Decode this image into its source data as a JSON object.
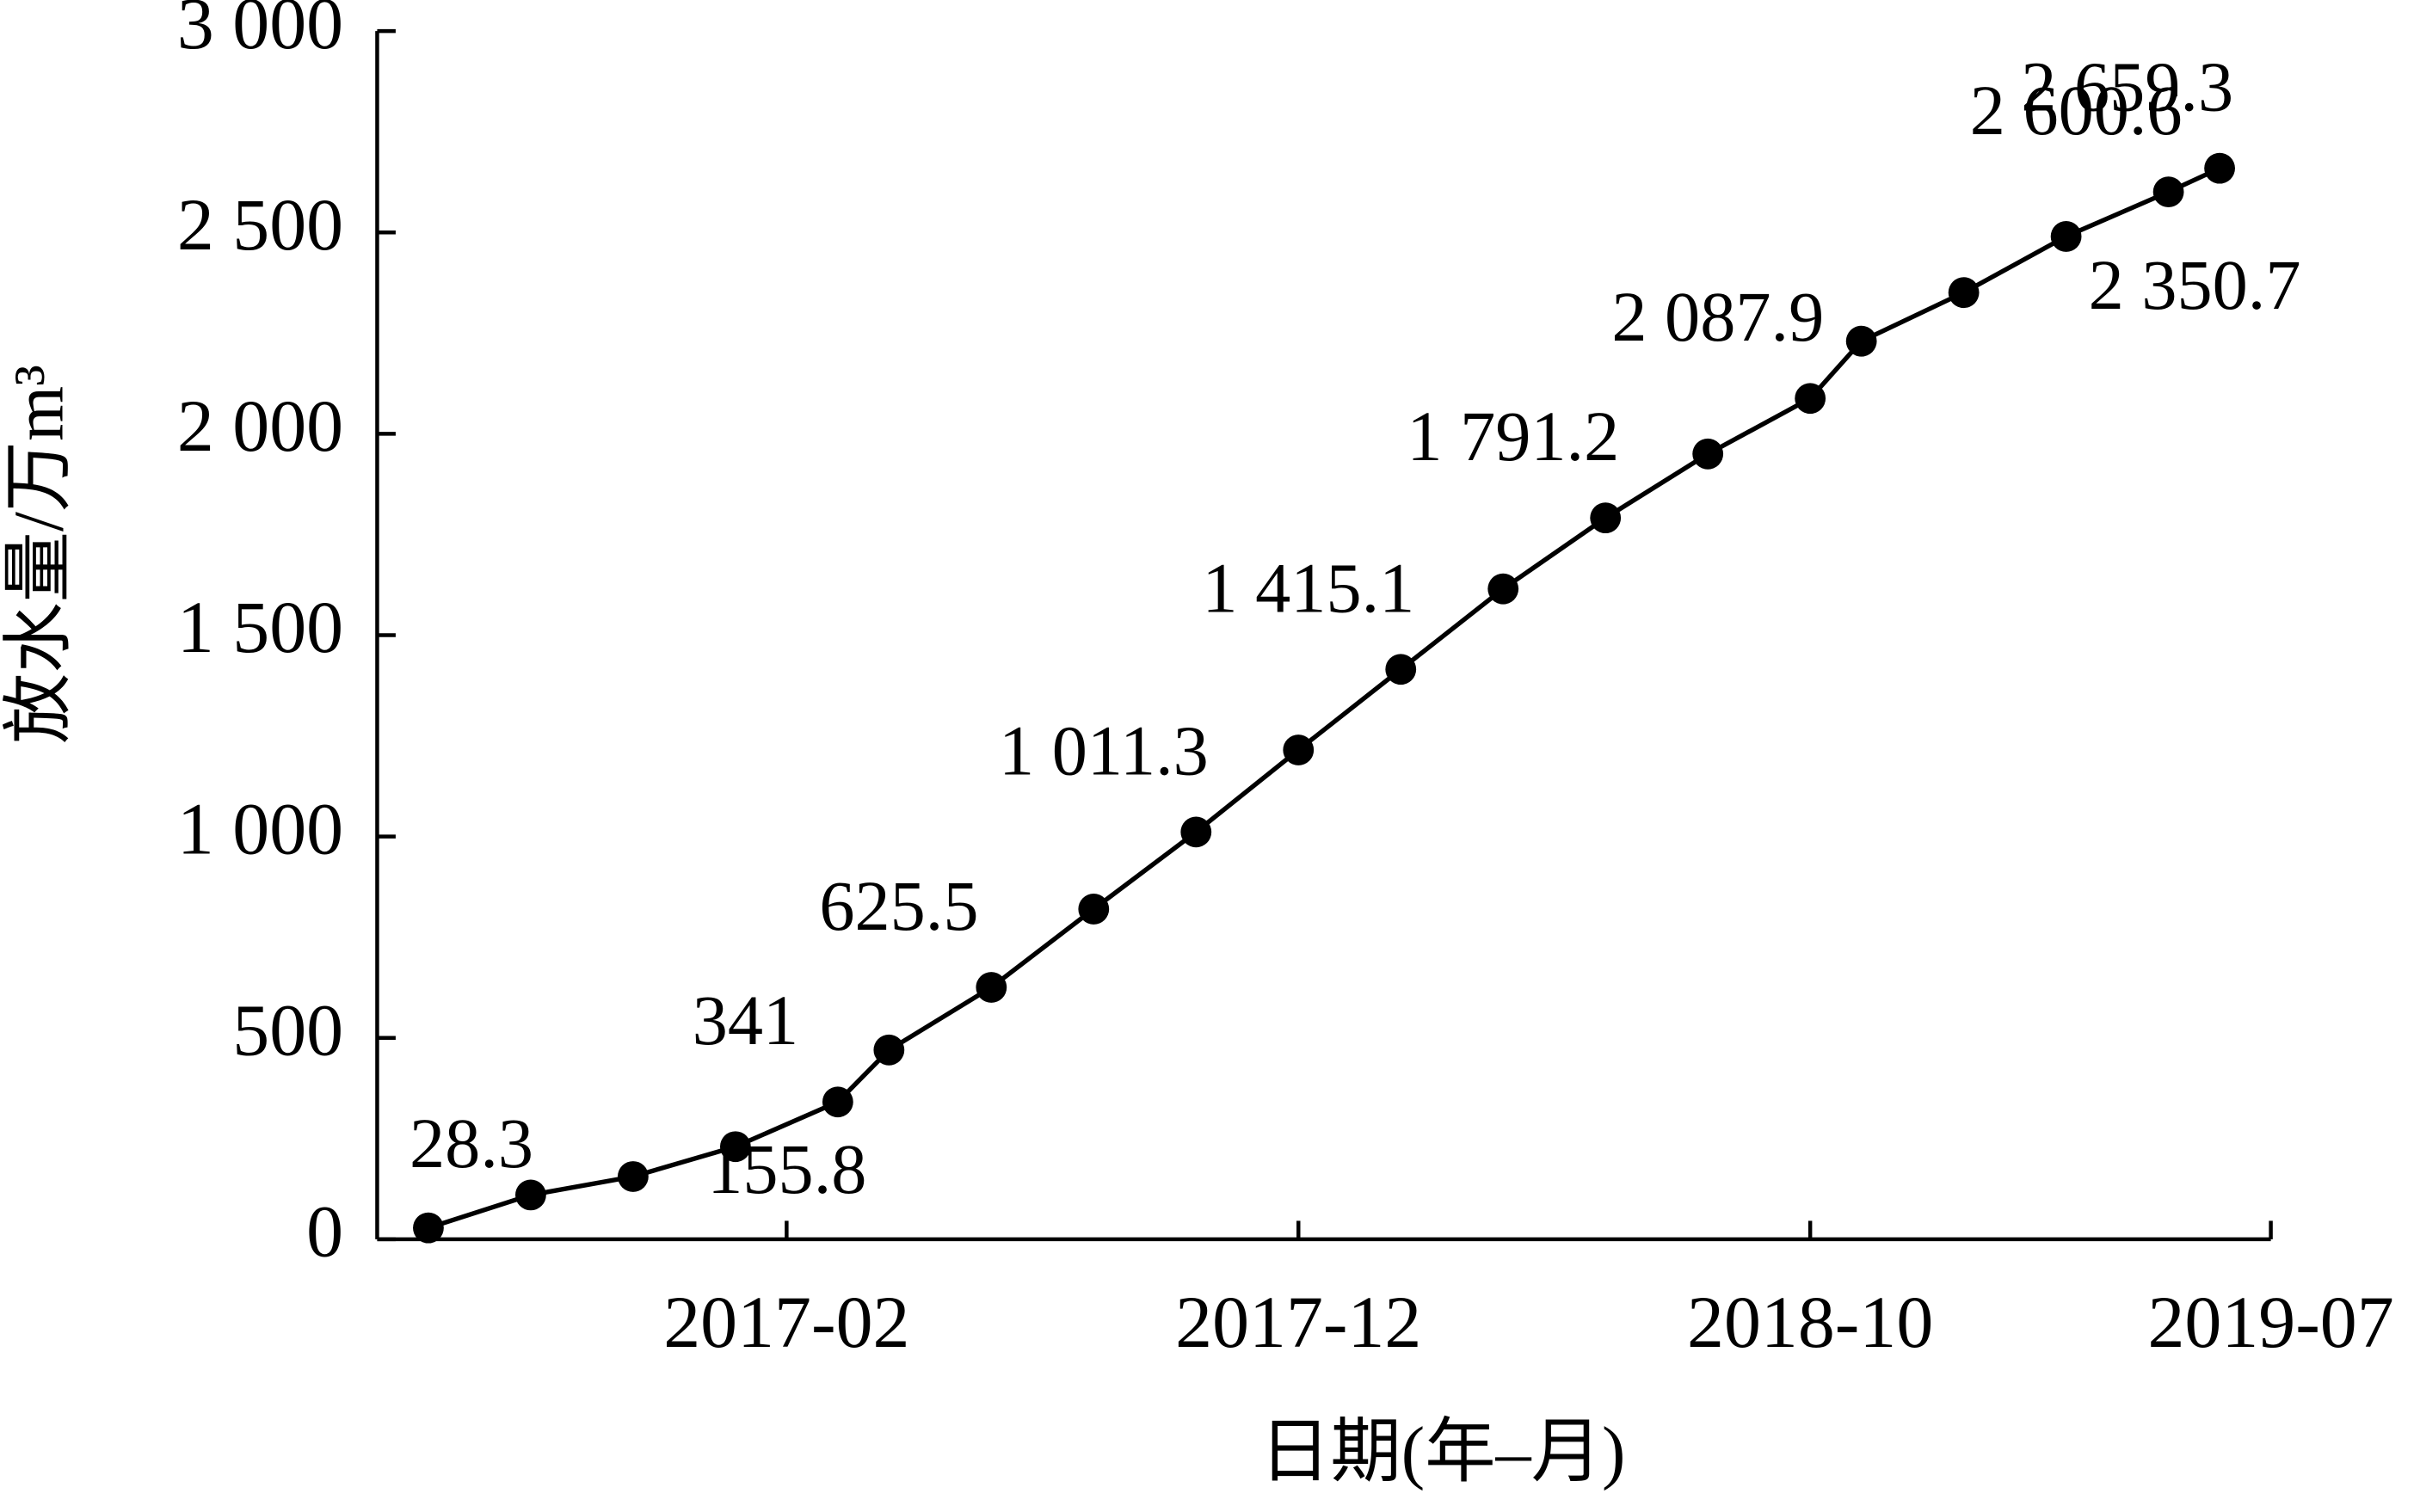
{
  "chart_data": {
    "type": "line",
    "xlabel": "日期(年–月)",
    "ylabel": "放水量/万m³",
    "x": [
      "2016-07",
      "2016-09",
      "2016-11",
      "2017-01",
      "2017-03",
      "2017-04",
      "2017-06",
      "2017-08",
      "2017-10",
      "2017-12",
      "2018-02",
      "2018-04",
      "2018-06",
      "2018-08",
      "2018-10",
      "2018-11",
      "2019-01",
      "2019-03",
      "2019-05",
      "2019-06"
    ],
    "series": [
      {
        "color": "#000000",
        "values": [
          28.3,
          110,
          155.8,
          230,
          341,
          470,
          625.5,
          820,
          1011.3,
          1215,
          1415.1,
          1615,
          1791.2,
          1950,
          2087.9,
          2230,
          2350.7,
          2490,
          2600.6,
          2659.3
        ],
        "value_labels": [
          "28.3",
          null,
          "155.8",
          null,
          "341",
          null,
          "625.5",
          null,
          "1 011.3",
          null,
          "1 415.1",
          null,
          "1 791.2",
          null,
          "2 087.9",
          null,
          "2 350.7",
          null,
          "2 600.6",
          "2 659.3"
        ]
      }
    ],
    "xlim": [
      "2016-06",
      "2019-07"
    ],
    "xticks": [
      "2017-02",
      "2017-12",
      "2018-10",
      "2019-07"
    ],
    "ylim": [
      0,
      3000
    ],
    "yticks": [
      0,
      500,
      {
        "value": 1000,
        "label": "1 000"
      },
      {
        "value": 1500,
        "label": "1 500"
      },
      {
        "value": 2000,
        "label": "2 000"
      },
      {
        "value": 2500,
        "label": "2 500"
      },
      {
        "value": 3000,
        "label": "3 000"
      }
    ]
  }
}
